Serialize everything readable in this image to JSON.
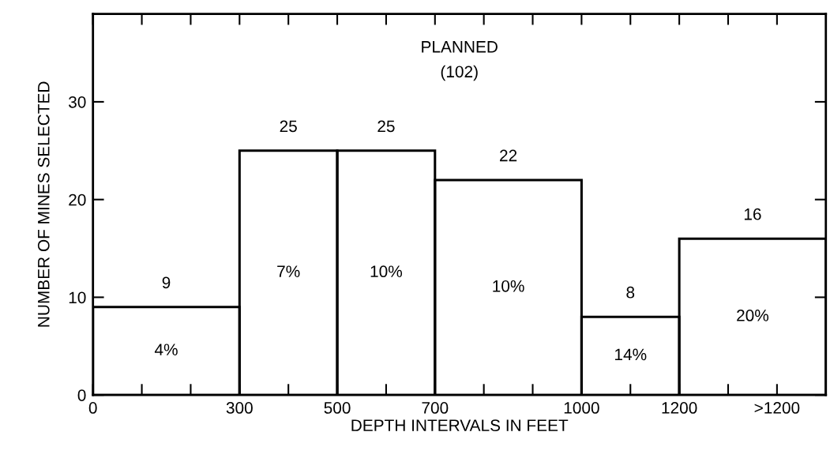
{
  "chart_data": {
    "type": "histogram",
    "xlabel": "DEPTH INTERVALS IN FEET",
    "ylabel": "NUMBER OF MINES SELECTED",
    "bins": [
      0,
      300,
      500,
      700,
      1000,
      1200,
      1500
    ],
    "values": [
      9,
      25,
      25,
      22,
      8,
      16
    ],
    "color": "#000000",
    "data_labels": true,
    "xlim": [
      0,
      1500
    ],
    "ylim": [
      0,
      39
    ],
    "xticks": [
      0,
      {
        "value": 100,
        "label": null
      },
      {
        "value": 200,
        "label": null
      },
      300,
      {
        "value": 400,
        "label": null
      },
      500,
      {
        "value": 600,
        "label": null
      },
      700,
      {
        "value": 800,
        "label": null
      },
      {
        "value": 900,
        "label": null
      },
      1000,
      {
        "value": 1100,
        "label": null
      },
      1200,
      {
        "value": 1300,
        "label": null
      },
      {
        "value": 1400,
        "label": ">1200"
      }
    ],
    "yticks": [
      0,
      10,
      20,
      30
    ],
    "grid": false,
    "annotations": [
      "PLANNED\n(102)",
      "4%",
      "7%",
      "10%",
      "10%",
      "14%",
      "20%"
    ]
  }
}
